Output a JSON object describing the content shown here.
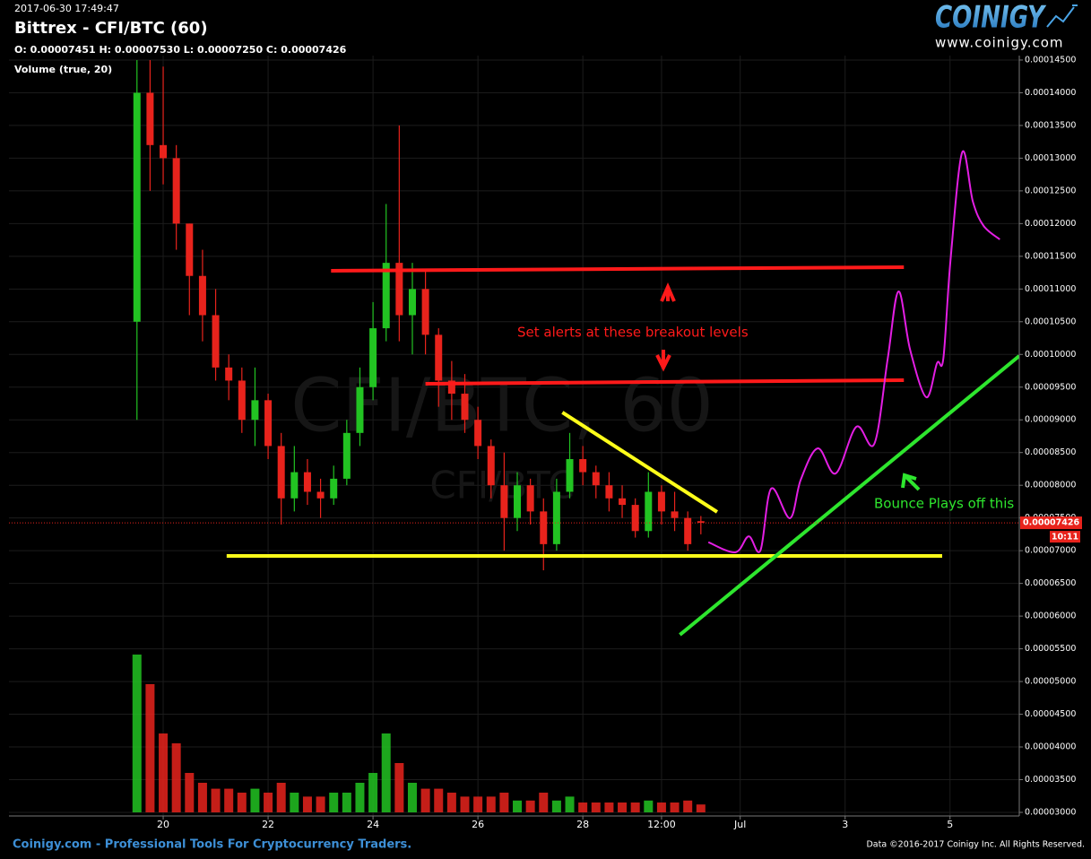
{
  "chart_data": {
    "type": "candlestick",
    "timestamp": "2017-06-30 17:49:47",
    "title": "Bittrex - CFI/BTC (60)",
    "ohlc_label": "O: 0.00007451 H: 0.00007530 L: 0.00007250 C: 0.00007426",
    "volume_label": "Volume (true, 20)",
    "watermark": "CFI/BTC, 60",
    "watermark_small": "CFI/BTC",
    "x": [
      19.5,
      19.75,
      20,
      20.25,
      20.5,
      20.75,
      21,
      21.25,
      21.5,
      21.75,
      22,
      22.25,
      22.5,
      22.75,
      23,
      23.25,
      23.5,
      23.75,
      24,
      24.25,
      24.5,
      24.75,
      25,
      25.25,
      25.5,
      25.75,
      26,
      26.25,
      26.5,
      26.75,
      27,
      27.25,
      27.5,
      27.75,
      28,
      28.25,
      28.5,
      28.75,
      29,
      29.25,
      29.5,
      29.75,
      30,
      30.25
    ],
    "open": [
      0.000105,
      0.00014,
      0.000132,
      0.00013,
      0.00012,
      0.000112,
      0.000106,
      9.8e-05,
      9.6e-05,
      9e-05,
      9.3e-05,
      8.6e-05,
      7.8e-05,
      8.2e-05,
      7.9e-05,
      7.8e-05,
      8.1e-05,
      8.8e-05,
      9.5e-05,
      0.000104,
      0.000114,
      0.000106,
      0.00011,
      0.000103,
      9.6e-05,
      9.4e-05,
      9e-05,
      8.6e-05,
      8e-05,
      7.5e-05,
      8e-05,
      7.6e-05,
      7.1e-05,
      7.9e-05,
      8.4e-05,
      8.2e-05,
      8e-05,
      7.8e-05,
      7.7e-05,
      7.3e-05,
      7.9e-05,
      7.6e-05,
      7.5e-05,
      7.451e-05
    ],
    "high": [
      0.000145,
      0.000145,
      0.000144,
      0.000132,
      0.00012,
      0.000116,
      0.00011,
      0.0001,
      9.8e-05,
      9.8e-05,
      9.4e-05,
      8.8e-05,
      8.6e-05,
      8.4e-05,
      8.1e-05,
      8.3e-05,
      9e-05,
      9.8e-05,
      0.000108,
      0.000123,
      0.000135,
      0.000114,
      0.000113,
      0.000104,
      9.9e-05,
      9.7e-05,
      9.2e-05,
      8.7e-05,
      8.5e-05,
      8.2e-05,
      8.1e-05,
      7.8e-05,
      8.1e-05,
      8.8e-05,
      8.6e-05,
      8.3e-05,
      8.2e-05,
      8e-05,
      7.8e-05,
      8.2e-05,
      8e-05,
      7.9e-05,
      7.6e-05,
      7.53e-05
    ],
    "low": [
      9e-05,
      0.000125,
      0.000126,
      0.000116,
      0.000106,
      0.000102,
      9.6e-05,
      9.3e-05,
      8.8e-05,
      8.6e-05,
      8.4e-05,
      7.4e-05,
      7.6e-05,
      7.7e-05,
      7.5e-05,
      7.7e-05,
      8e-05,
      8.6e-05,
      9.3e-05,
      0.000102,
      0.000102,
      0.0001,
      0.0001,
      9.2e-05,
      9e-05,
      8.8e-05,
      8.4e-05,
      7.8e-05,
      7e-05,
      7.3e-05,
      7.4e-05,
      6.7e-05,
      7e-05,
      7.8e-05,
      8e-05,
      7.8e-05,
      7.6e-05,
      7.5e-05,
      7.2e-05,
      7.2e-05,
      7.4e-05,
      7.3e-05,
      7e-05,
      7.25e-05
    ],
    "close": [
      0.00014,
      0.000132,
      0.00013,
      0.00012,
      0.000112,
      0.000106,
      9.8e-05,
      9.6e-05,
      9e-05,
      9.3e-05,
      8.6e-05,
      7.8e-05,
      8.2e-05,
      7.9e-05,
      7.8e-05,
      8.1e-05,
      8.8e-05,
      9.5e-05,
      0.000104,
      0.000114,
      0.000106,
      0.00011,
      0.000103,
      9.6e-05,
      9.4e-05,
      9e-05,
      8.6e-05,
      8e-05,
      7.5e-05,
      8e-05,
      7.6e-05,
      7.1e-05,
      7.9e-05,
      8.4e-05,
      8.2e-05,
      8e-05,
      7.8e-05,
      7.7e-05,
      7.3e-05,
      7.9e-05,
      7.6e-05,
      7.5e-05,
      7.1e-05,
      7.426e-05
    ],
    "volume": [
      80,
      65,
      40,
      35,
      20,
      15,
      12,
      12,
      10,
      12,
      10,
      15,
      10,
      8,
      8,
      10,
      10,
      15,
      20,
      40,
      25,
      15,
      12,
      12,
      10,
      8,
      8,
      8,
      10,
      6,
      6,
      10,
      6,
      8,
      5,
      5,
      5,
      5,
      5,
      6,
      5,
      5,
      6,
      4
    ],
    "vlim": [
      0,
      100
    ],
    "up_color": "#22c322",
    "down_color": "#e8231c",
    "xlim": [
      17.06,
      36.32
    ],
    "ylim": [
      2.945e-05,
      0.00014568
    ],
    "xticks": [
      20,
      22,
      24,
      26,
      28,
      {
        "value": 29.5,
        "label": "12:00"
      },
      {
        "value": 31,
        "label": "Jul"
      },
      {
        "value": 33,
        "label": "3"
      },
      {
        "value": 35,
        "label": "5"
      }
    ],
    "yticks": [
      {
        "value": 3e-05,
        "label": "0.00003000"
      },
      {
        "value": 3.5e-05,
        "label": "0.00003500"
      },
      {
        "value": 4e-05,
        "label": "0.00004000"
      },
      {
        "value": 4.5e-05,
        "label": "0.00004500"
      },
      {
        "value": 5e-05,
        "label": "0.00005000"
      },
      {
        "value": 5.5e-05,
        "label": "0.00005500"
      },
      {
        "value": 6e-05,
        "label": "0.00006000"
      },
      {
        "value": 6.5e-05,
        "label": "0.00006500"
      },
      {
        "value": 7e-05,
        "label": "0.00007000"
      },
      {
        "value": 7.5e-05,
        "label": "0.00007500"
      },
      {
        "value": 8e-05,
        "label": "0.00008000"
      },
      {
        "value": 8.5e-05,
        "label": "0.00008500"
      },
      {
        "value": 9e-05,
        "label": "0.00009000"
      },
      {
        "value": 9.5e-05,
        "label": "0.00009500"
      },
      {
        "value": 0.0001,
        "label": "0.00010000"
      },
      {
        "value": 0.000105,
        "label": "0.00010500"
      },
      {
        "value": 0.00011,
        "label": "0.00011000"
      },
      {
        "value": 0.000115,
        "label": "0.00011500"
      },
      {
        "value": 0.00012,
        "label": "0.00012000"
      },
      {
        "value": 0.000125,
        "label": "0.00012500"
      },
      {
        "value": 0.00013,
        "label": "0.00013000"
      },
      {
        "value": 0.000135,
        "label": "0.00013500"
      },
      {
        "value": 0.00014,
        "label": "0.00014000"
      },
      {
        "value": 0.000145,
        "label": "0.00014500"
      }
    ],
    "grid": true,
    "last_price": 7.426e-05,
    "last_price_color": "#e8231c",
    "countdown": "10:11",
    "lines": [
      {
        "color": "#ff1a1a",
        "x": [
          23.2,
          34.12
        ],
        "y": [
          0.00011279,
          0.00011333
        ]
      },
      {
        "color": "#ff1a1a",
        "x": [
          25.0,
          34.12
        ],
        "y": [
          9.552e-05,
          9.607e-05
        ]
      },
      {
        "color": "#ffff1a",
        "x": [
          21.21,
          34.85
        ],
        "y": [
          6.92e-05,
          6.92e-05
        ]
      },
      {
        "color": "#ffff1a",
        "x": [
          27.61,
          30.56
        ],
        "y": [
          9.113e-05,
          7.592e-05
        ]
      },
      {
        "color": "#2ee62e",
        "x": [
          29.85,
          36.32
        ],
        "y": [
          5.714e-05,
          9.977e-05
        ]
      }
    ],
    "projection": {
      "color": "#e31ee3",
      "x": [
        30.393,
        30.906,
        31.162,
        31.385,
        31.59,
        31.949,
        32.154,
        32.479,
        32.821,
        33.214,
        33.556,
        33.812,
        34.017,
        34.239,
        34.547,
        34.752,
        34.872,
        35.009,
        35.231,
        35.436,
        35.641,
        35.949
      ],
      "y": [
        7.13e-05,
        6.975e-05,
        7.22e-05,
        7.002e-05,
        7.948e-05,
        7.496e-05,
        8.085e-05,
        8.565e-05,
        8.181e-05,
        8.894e-05,
        8.633e-05,
        9.935e-05,
        0.00010963,
        0.00010072,
        9.346e-05,
        9.867e-05,
        9.935e-05,
        0.00011443,
        0.00013088,
        0.00012334,
        0.00011964,
        0.00011758
      ]
    },
    "annotations": [
      "Set alerts at these breakout levels",
      "Bounce Plays off this"
    ]
  },
  "logo": {
    "name": "COINIGY",
    "url": "www.coinigy.com"
  },
  "footer": {
    "left": "Coinigy.com - Professional Tools For Cryptocurrency Traders.",
    "right": "Data ©2016-2017 Coinigy Inc. All Rights Reserved."
  }
}
